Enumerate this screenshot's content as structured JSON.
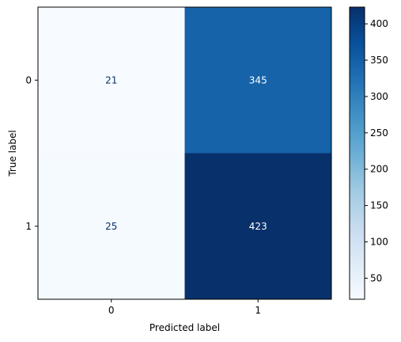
{
  "chart_data": {
    "type": "heatmap",
    "title": "",
    "xlabel": "Predicted label",
    "ylabel": "True label",
    "x_categories": [
      "0",
      "1"
    ],
    "y_categories": [
      "0",
      "1"
    ],
    "values": [
      [
        21,
        345
      ],
      [
        25,
        423
      ]
    ],
    "colormap": "Blues",
    "colorbar": {
      "ticks": [
        "50",
        "100",
        "150",
        "200",
        "250",
        "300",
        "350",
        "400"
      ],
      "tick_values": [
        50,
        100,
        150,
        200,
        250,
        300,
        350,
        400
      ],
      "range": [
        21,
        423
      ]
    }
  }
}
